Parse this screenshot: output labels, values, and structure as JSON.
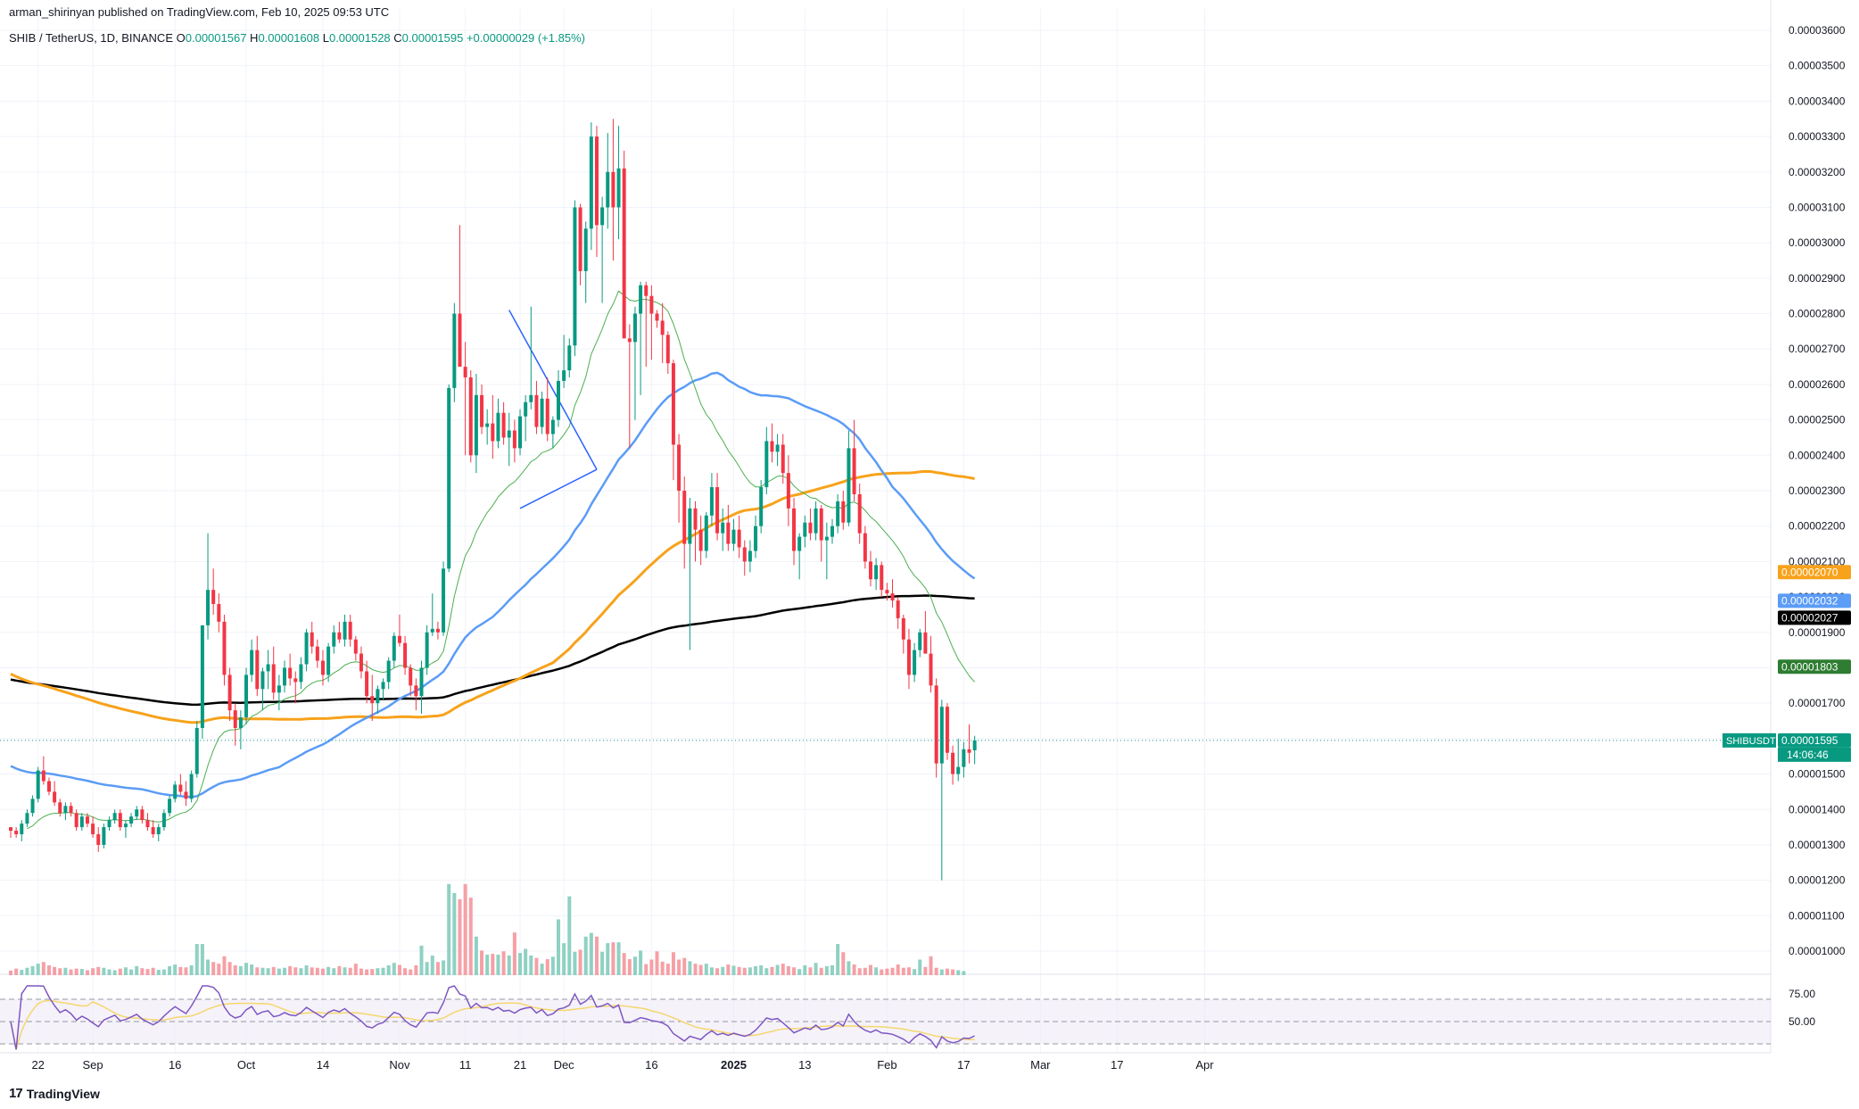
{
  "header": {
    "published": "arman_shirinyan published on TradingView.com, Feb 10, 2025 09:53 UTC",
    "symbol_line": "SHIB / TetherUS, 1D, BINANCE",
    "ohlc": [
      {
        "k": "O",
        "v": "0.00001567"
      },
      {
        "k": "H",
        "v": "0.00001608"
      },
      {
        "k": "L",
        "v": "0.00001528"
      },
      {
        "k": "C",
        "v": "0.00001595"
      }
    ],
    "change": "+0.00000029 (+1.85%)"
  },
  "footer": {
    "brand": "TradingView"
  },
  "colors": {
    "up": "#089981",
    "down": "#f23645",
    "vol_up": "#8fd1c3",
    "vol_down": "#f5a0a6",
    "ma_black": "#000000",
    "ma_orange": "#f7a21b",
    "ma_blue": "#5b9cf6",
    "ma_green": "#4caf50",
    "rsi_line": "#7e57c2",
    "rsi_ma": "#f5d76e",
    "rsi_band": "#ede7f6",
    "trend": "#2962ff"
  },
  "chart_data": {
    "type": "candlestick",
    "symbol": "SHIBUSDT",
    "interval": "1D",
    "exchange": "BINANCE",
    "y_axis": {
      "ticks": [
        "0.00003600",
        "0.00003500",
        "0.00003400",
        "0.00003300",
        "0.00003200",
        "0.00003100",
        "0.00003000",
        "0.00002900",
        "0.00002800",
        "0.00002700",
        "0.00002600",
        "0.00002500",
        "0.00002400",
        "0.00002300",
        "0.00002200",
        "0.00002100",
        "0.00002000",
        "0.00001900",
        "0.00001800",
        "0.00001700",
        "0.00001600",
        "0.00001500",
        "0.00001400",
        "0.00001300",
        "0.00001200",
        "0.00001100",
        "0.00001000"
      ],
      "range": [
        9.85e-06,
        3.61e-05
      ]
    },
    "x_axis": {
      "ticks": [
        "22",
        "Sep",
        "16",
        "Oct",
        "14",
        "Nov",
        "11",
        "21",
        "Dec",
        "16",
        "2025",
        "13",
        "Feb",
        "17",
        "Mar",
        "17",
        "Apr"
      ],
      "tick_bars": [
        5,
        15,
        30,
        43,
        57,
        71,
        83,
        93,
        101,
        117,
        132,
        145,
        160,
        174,
        188,
        202,
        218
      ]
    },
    "price_labels": [
      {
        "label": "",
        "value": 2.07e-05,
        "text": "0.00002070",
        "color": "#f7a21b"
      },
      {
        "label": "",
        "value": 2.032e-05,
        "text": "0.00002032",
        "color": "#5b9cf6"
      },
      {
        "label": "",
        "value": 2.027e-05,
        "text": "0.00002027",
        "color": "#000000"
      },
      {
        "label": "",
        "value": 1.803e-05,
        "text": "0.00001803",
        "color": "#2e7d32"
      },
      {
        "label": "SHIBUSDT",
        "value": 1.595e-05,
        "text": "0.00001595",
        "sub": "14:06:46",
        "color": "#089981"
      }
    ],
    "candles_ohlc": [
      [
        13.5,
        13.5,
        13.2,
        13.4
      ],
      [
        13.4,
        13.5,
        13.2,
        13.3
      ],
      [
        13.3,
        13.7,
        13.1,
        13.6
      ],
      [
        13.6,
        14.0,
        13.5,
        13.9
      ],
      [
        13.9,
        14.4,
        13.8,
        14.3
      ],
      [
        14.3,
        15.2,
        14.2,
        15.1
      ],
      [
        15.1,
        15.5,
        14.7,
        14.8
      ],
      [
        14.8,
        14.9,
        14.4,
        14.5
      ],
      [
        14.5,
        14.8,
        14.1,
        14.2
      ],
      [
        14.2,
        14.3,
        13.8,
        13.9
      ],
      [
        13.9,
        14.2,
        13.7,
        14.1
      ],
      [
        14.1,
        14.2,
        13.8,
        13.9
      ],
      [
        13.9,
        14.0,
        13.4,
        13.5
      ],
      [
        13.5,
        13.9,
        13.4,
        13.8
      ],
      [
        13.8,
        13.9,
        13.5,
        13.6
      ],
      [
        13.6,
        13.8,
        13.2,
        13.3
      ],
      [
        13.3,
        13.5,
        12.8,
        13.0
      ],
      [
        13.0,
        13.6,
        12.9,
        13.5
      ],
      [
        13.5,
        13.8,
        13.4,
        13.7
      ],
      [
        13.7,
        14.0,
        13.6,
        13.9
      ],
      [
        13.9,
        14.0,
        13.4,
        13.5
      ],
      [
        13.5,
        13.7,
        13.2,
        13.6
      ],
      [
        13.6,
        13.9,
        13.5,
        13.8
      ],
      [
        13.8,
        14.1,
        13.7,
        14.0
      ],
      [
        14.0,
        14.1,
        13.6,
        13.7
      ],
      [
        13.7,
        13.9,
        13.4,
        13.5
      ],
      [
        13.5,
        13.7,
        13.2,
        13.3
      ],
      [
        13.3,
        13.6,
        13.1,
        13.5
      ],
      [
        13.5,
        14.0,
        13.4,
        13.9
      ],
      [
        13.9,
        14.4,
        13.8,
        14.3
      ],
      [
        14.3,
        14.8,
        14.2,
        14.7
      ],
      [
        14.7,
        15.0,
        14.4,
        14.5
      ],
      [
        14.5,
        14.8,
        14.1,
        14.3
      ],
      [
        14.3,
        15.1,
        14.2,
        15.0
      ],
      [
        15.0,
        16.5,
        14.9,
        16.3
      ],
      [
        16.3,
        18.0,
        16.0,
        19.2
      ],
      [
        19.2,
        21.8,
        18.8,
        20.2
      ],
      [
        20.2,
        20.8,
        19.5,
        19.8
      ],
      [
        19.8,
        20.1,
        19.0,
        19.3
      ],
      [
        19.3,
        19.5,
        17.5,
        17.8
      ],
      [
        17.8,
        18.0,
        16.5,
        16.8
      ],
      [
        16.8,
        17.0,
        15.8,
        16.3
      ],
      [
        16.3,
        16.8,
        15.7,
        16.6
      ],
      [
        16.6,
        18.0,
        16.4,
        17.8
      ],
      [
        17.8,
        18.8,
        17.6,
        18.5
      ],
      [
        18.5,
        18.9,
        17.2,
        17.4
      ],
      [
        17.4,
        18.0,
        16.8,
        17.9
      ],
      [
        17.9,
        18.5,
        17.4,
        18.1
      ],
      [
        18.1,
        18.6,
        17.1,
        17.3
      ],
      [
        17.3,
        17.8,
        16.8,
        17.5
      ],
      [
        17.5,
        18.2,
        17.3,
        18.0
      ],
      [
        18.0,
        18.4,
        17.5,
        17.7
      ],
      [
        17.7,
        17.9,
        17.0,
        17.6
      ],
      [
        17.6,
        18.3,
        17.4,
        18.1
      ],
      [
        18.1,
        19.1,
        17.9,
        19.0
      ],
      [
        19.0,
        19.3,
        18.4,
        18.6
      ],
      [
        18.6,
        18.8,
        18.0,
        18.2
      ],
      [
        18.2,
        18.5,
        17.5,
        17.8
      ],
      [
        17.8,
        18.7,
        17.6,
        18.6
      ],
      [
        18.6,
        19.2,
        18.4,
        19.0
      ],
      [
        19.0,
        19.3,
        18.7,
        18.8
      ],
      [
        18.8,
        19.5,
        18.6,
        19.3
      ],
      [
        19.3,
        19.5,
        18.6,
        18.8
      ],
      [
        18.8,
        18.9,
        18.2,
        18.4
      ],
      [
        18.4,
        18.6,
        17.7,
        17.9
      ],
      [
        17.9,
        18.2,
        17.0,
        17.2
      ],
      [
        17.2,
        17.8,
        16.5,
        17.0
      ],
      [
        17.0,
        17.5,
        16.7,
        17.4
      ],
      [
        17.4,
        17.7,
        17.1,
        17.6
      ],
      [
        17.6,
        18.3,
        17.4,
        18.2
      ],
      [
        18.2,
        19.0,
        18.0,
        18.9
      ],
      [
        18.9,
        19.5,
        18.6,
        18.7
      ],
      [
        18.7,
        18.9,
        17.8,
        18.0
      ],
      [
        18.0,
        18.1,
        17.2,
        17.5
      ],
      [
        17.5,
        17.7,
        16.8,
        17.2
      ],
      [
        17.2,
        18.2,
        16.7,
        18.0
      ],
      [
        18.0,
        19.2,
        17.8,
        19.0
      ],
      [
        19.0,
        20.1,
        18.9,
        19.1
      ],
      [
        19.1,
        19.3,
        18.8,
        19.0
      ],
      [
        19.0,
        21.0,
        18.9,
        20.8
      ],
      [
        20.8,
        26.0,
        20.7,
        25.9
      ],
      [
        25.9,
        28.3,
        25.5,
        28.0
      ],
      [
        28.0,
        30.5,
        26.8,
        26.5
      ],
      [
        26.5,
        27.2,
        24.0,
        26.2
      ],
      [
        26.2,
        26.4,
        23.8,
        24.0
      ],
      [
        24.0,
        26.3,
        23.5,
        25.7
      ],
      [
        25.7,
        26.0,
        24.6,
        24.8
      ],
      [
        24.8,
        25.3,
        24.3,
        24.9
      ],
      [
        24.9,
        25.7,
        23.9,
        24.4
      ],
      [
        24.4,
        25.6,
        24.2,
        25.2
      ],
      [
        25.2,
        25.5,
        24.3,
        24.5
      ],
      [
        24.5,
        25.2,
        23.7,
        24.7
      ],
      [
        24.7,
        25.0,
        23.8,
        24.2
      ],
      [
        24.2,
        25.3,
        24.0,
        25.1
      ],
      [
        25.1,
        25.7,
        24.4,
        25.5
      ],
      [
        25.5,
        28.2,
        25.3,
        25.7
      ],
      [
        25.7,
        26.1,
        24.6,
        24.8
      ],
      [
        24.8,
        25.8,
        24.6,
        25.6
      ],
      [
        25.6,
        26.2,
        24.4,
        24.6
      ],
      [
        24.6,
        25.1,
        24.2,
        25.0
      ],
      [
        25.0,
        26.4,
        24.8,
        26.1
      ],
      [
        26.1,
        27.4,
        25.9,
        26.4
      ],
      [
        26.4,
        27.3,
        26.2,
        27.1
      ],
      [
        27.1,
        31.2,
        26.8,
        31.0
      ],
      [
        31.0,
        31.1,
        28.8,
        29.2
      ],
      [
        29.2,
        30.6,
        28.3,
        30.4
      ],
      [
        30.4,
        33.4,
        29.8,
        33.0
      ],
      [
        33.0,
        33.3,
        29.6,
        30.5
      ],
      [
        30.5,
        31.3,
        28.3,
        31.0
      ],
      [
        31.0,
        33.1,
        30.4,
        32.0
      ],
      [
        32.0,
        33.5,
        29.5,
        31.0
      ],
      [
        31.0,
        33.3,
        30.1,
        32.1
      ],
      [
        32.1,
        32.6,
        28.7,
        27.3
      ],
      [
        27.3,
        27.7,
        24.2,
        27.2
      ],
      [
        27.2,
        28.2,
        25.0,
        28.0
      ],
      [
        28.0,
        28.9,
        25.7,
        28.8
      ],
      [
        28.8,
        28.9,
        26.5,
        28.5
      ],
      [
        28.5,
        28.8,
        26.7,
        28.0
      ],
      [
        28.0,
        28.1,
        27.6,
        27.8
      ],
      [
        27.8,
        28.3,
        26.6,
        27.4
      ],
      [
        27.4,
        27.5,
        26.3,
        26.6
      ],
      [
        26.6,
        26.7,
        23.3,
        24.3
      ],
      [
        24.3,
        24.6,
        22.1,
        23.0
      ],
      [
        23.0,
        23.4,
        20.8,
        21.5
      ],
      [
        21.5,
        22.8,
        18.5,
        22.5
      ],
      [
        22.5,
        22.7,
        21.0,
        21.9
      ],
      [
        21.9,
        22.3,
        20.9,
        21.3
      ],
      [
        21.3,
        22.4,
        21.1,
        22.3
      ],
      [
        22.3,
        23.5,
        22.0,
        23.1
      ],
      [
        23.1,
        23.5,
        21.6,
        21.8
      ],
      [
        21.8,
        22.5,
        21.3,
        22.1
      ],
      [
        22.1,
        22.6,
        21.3,
        21.5
      ],
      [
        21.5,
        22.2,
        21.3,
        21.9
      ],
      [
        21.9,
        22.3,
        21.1,
        21.4
      ],
      [
        21.4,
        21.6,
        20.6,
        21.0
      ],
      [
        21.0,
        21.6,
        20.7,
        21.3
      ],
      [
        21.3,
        22.3,
        21.1,
        22.0
      ],
      [
        22.0,
        23.3,
        21.8,
        23.1
      ],
      [
        23.1,
        24.8,
        22.9,
        24.4
      ],
      [
        24.4,
        24.9,
        23.8,
        24.1
      ],
      [
        24.1,
        24.6,
        23.7,
        24.3
      ],
      [
        24.3,
        24.6,
        23.2,
        23.5
      ],
      [
        23.5,
        24.0,
        22.0,
        22.5
      ],
      [
        22.5,
        22.8,
        20.9,
        21.3
      ],
      [
        21.3,
        21.8,
        20.5,
        21.7
      ],
      [
        21.7,
        22.3,
        21.4,
        22.1
      ],
      [
        22.1,
        22.5,
        21.6,
        21.8
      ],
      [
        21.8,
        22.7,
        21.6,
        22.5
      ],
      [
        22.5,
        22.6,
        21.0,
        21.6
      ],
      [
        21.6,
        22.1,
        20.5,
        21.7
      ],
      [
        21.7,
        22.2,
        21.5,
        22.0
      ],
      [
        22.0,
        22.9,
        21.8,
        22.7
      ],
      [
        22.7,
        23.0,
        21.9,
        22.1
      ],
      [
        22.1,
        24.7,
        22.0,
        24.2
      ],
      [
        24.2,
        25.0,
        22.7,
        22.9
      ],
      [
        22.9,
        23.2,
        21.5,
        21.8
      ],
      [
        21.8,
        22.0,
        20.8,
        21.0
      ],
      [
        21.0,
        21.3,
        20.3,
        20.5
      ],
      [
        20.5,
        21.1,
        20.2,
        20.9
      ],
      [
        20.9,
        21.0,
        20.0,
        20.2
      ],
      [
        20.2,
        20.4,
        19.9,
        20.1
      ],
      [
        20.1,
        20.5,
        19.7,
        19.9
      ],
      [
        19.9,
        20.0,
        19.1,
        19.4
      ],
      [
        19.4,
        19.5,
        18.4,
        18.8
      ],
      [
        18.8,
        19.1,
        17.4,
        17.8
      ],
      [
        17.8,
        18.7,
        17.6,
        18.5
      ],
      [
        18.5,
        19.1,
        18.3,
        19.0
      ],
      [
        19.0,
        19.6,
        18.7,
        18.4
      ],
      [
        18.4,
        18.9,
        17.3,
        17.5
      ],
      [
        17.5,
        17.7,
        14.9,
        15.3
      ],
      [
        15.3,
        17.1,
        12.0,
        16.9
      ],
      [
        16.9,
        17.0,
        15.4,
        15.6
      ],
      [
        15.6,
        15.8,
        14.7,
        15.0
      ],
      [
        15.0,
        16.0,
        14.8,
        15.2
      ],
      [
        15.2,
        15.9,
        14.9,
        15.7
      ],
      [
        15.7,
        16.4,
        15.3,
        15.6
      ],
      [
        15.67,
        16.08,
        15.28,
        15.95
      ]
    ],
    "volume_b": [
      55,
      80,
      65,
      90,
      110,
      140,
      160,
      120,
      100,
      85,
      90,
      70,
      80,
      75,
      60,
      85,
      100,
      90,
      70,
      60,
      80,
      95,
      70,
      110,
      85,
      75,
      90,
      65,
      70,
      110,
      130,
      100,
      95,
      120,
      380,
      380,
      190,
      160,
      140,
      230,
      160,
      120,
      110,
      150,
      130,
      95,
      90,
      85,
      100,
      80,
      90,
      110,
      95,
      85,
      120,
      95,
      90,
      80,
      100,
      85,
      110,
      95,
      90,
      140,
      80,
      70,
      75,
      85,
      90,
      120,
      150,
      125,
      85,
      70,
      120,
      360,
      160,
      240,
      160,
      180,
      1110,
      1000,
      925,
      1110,
      945,
      470,
      300,
      250,
      260,
      250,
      290,
      240,
      520,
      270,
      320,
      240,
      210,
      140,
      195,
      225,
      680,
      390,
      960,
      285,
      310,
      470,
      515,
      470,
      285,
      390,
      400,
      400,
      270,
      195,
      225,
      300,
      135,
      190,
      290,
      165,
      140,
      280,
      190,
      210,
      170,
      140,
      125,
      140,
      95,
      85,
      100,
      130,
      115,
      100,
      90,
      95,
      110,
      120,
      85,
      100,
      125,
      140,
      110,
      95,
      75,
      120,
      95,
      150,
      90,
      110,
      120,
      380,
      280,
      170,
      130,
      85,
      90,
      125,
      95,
      70,
      80,
      90,
      130,
      90,
      95,
      75,
      190,
      100,
      230,
      90,
      70,
      80,
      70,
      60,
      50
    ]
  }
}
